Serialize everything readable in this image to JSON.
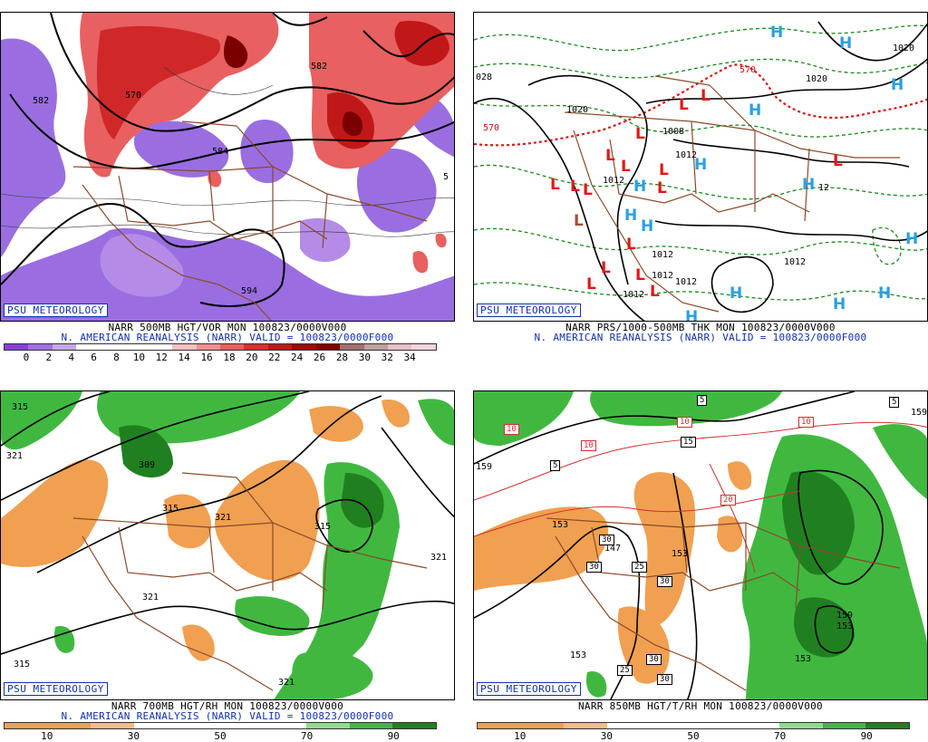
{
  "panels": [
    {
      "id": "p1",
      "badge": "PSU METEOROLOGY",
      "line1": "NARR 500MB HGT/VOR MON 100823/0000V000",
      "line2": "N. AMERICAN REANALYSIS (NARR) VALID = 100823/0000F000",
      "colorbar": [
        "#8a3fd8",
        "#a070e0",
        "#c2a8ec",
        "#ffffff",
        "#ffffff",
        "#ffffff",
        "#ffffff",
        "#f6c0c0",
        "#f09090",
        "#e86060",
        "#d83030",
        "#c01818",
        "#a00808",
        "#800000",
        "#a07070",
        "#c0a0a0",
        "#e8c0c8",
        "#f4d4dc"
      ],
      "ticks": [
        "0",
        "2",
        "4",
        "6",
        "8",
        "10",
        "12",
        "14",
        "16",
        "18",
        "20",
        "22",
        "24",
        "26",
        "28",
        "30",
        "32",
        "34"
      ],
      "labels": [
        "582",
        "570",
        "582",
        "584",
        "594",
        "5"
      ]
    },
    {
      "id": "p2",
      "badge": "PSU METEOROLOGY",
      "line1": "NARR PRS/1000-500MB THK MON 100823/0000V000",
      "line2": "N. AMERICAN REANALYSIS (NARR) VALID = 100823/0000F000",
      "labels": [
        "028",
        "570",
        "570",
        "1020",
        "1020",
        "1020",
        "1008",
        "1012",
        "1012",
        "1012",
        "1012",
        "1012",
        "1012",
        "1012",
        "12"
      ],
      "highs": 14,
      "lows": 17
    },
    {
      "id": "p3",
      "badge": "PSU METEOROLOGY",
      "line1": "NARR 700MB HGT/RH MON 100823/0000V000",
      "line2": "N. AMERICAN REANALYSIS (NARR) VALID = 100823/0000F000",
      "colorbar": [
        "#f0a050",
        "#f0a050",
        "#f5bd80",
        "#ffffff",
        "#ffffff",
        "#ffffff",
        "#ffffff",
        "#90dc8c",
        "#40b840",
        "#208020"
      ],
      "ticks": [
        "10",
        "30",
        "50",
        "70",
        "90"
      ],
      "labels": [
        "315",
        "321",
        "309",
        "315",
        "321",
        "315",
        "321",
        "321",
        "315",
        "321"
      ]
    },
    {
      "id": "p4",
      "badge": "PSU METEOROLOGY",
      "line1": "NARR 850MB HGT/T/RH MON 100823/0000V000",
      "colorbar": [
        "#f0a050",
        "#f0a050",
        "#f5bd80",
        "#ffffff",
        "#ffffff",
        "#ffffff",
        "#ffffff",
        "#90dc8c",
        "#40b840",
        "#208020"
      ],
      "ticks": [
        "10",
        "30",
        "50",
        "70",
        "90"
      ],
      "labels": [
        "159",
        "153",
        "147",
        "153",
        "153",
        "153",
        "159",
        "159",
        "153"
      ],
      "boxed": [
        "10",
        "10",
        "10",
        "10",
        "5",
        "5",
        "15",
        "20",
        "30",
        "30",
        "25",
        "30",
        "30",
        "25",
        "30",
        "5"
      ]
    }
  ]
}
